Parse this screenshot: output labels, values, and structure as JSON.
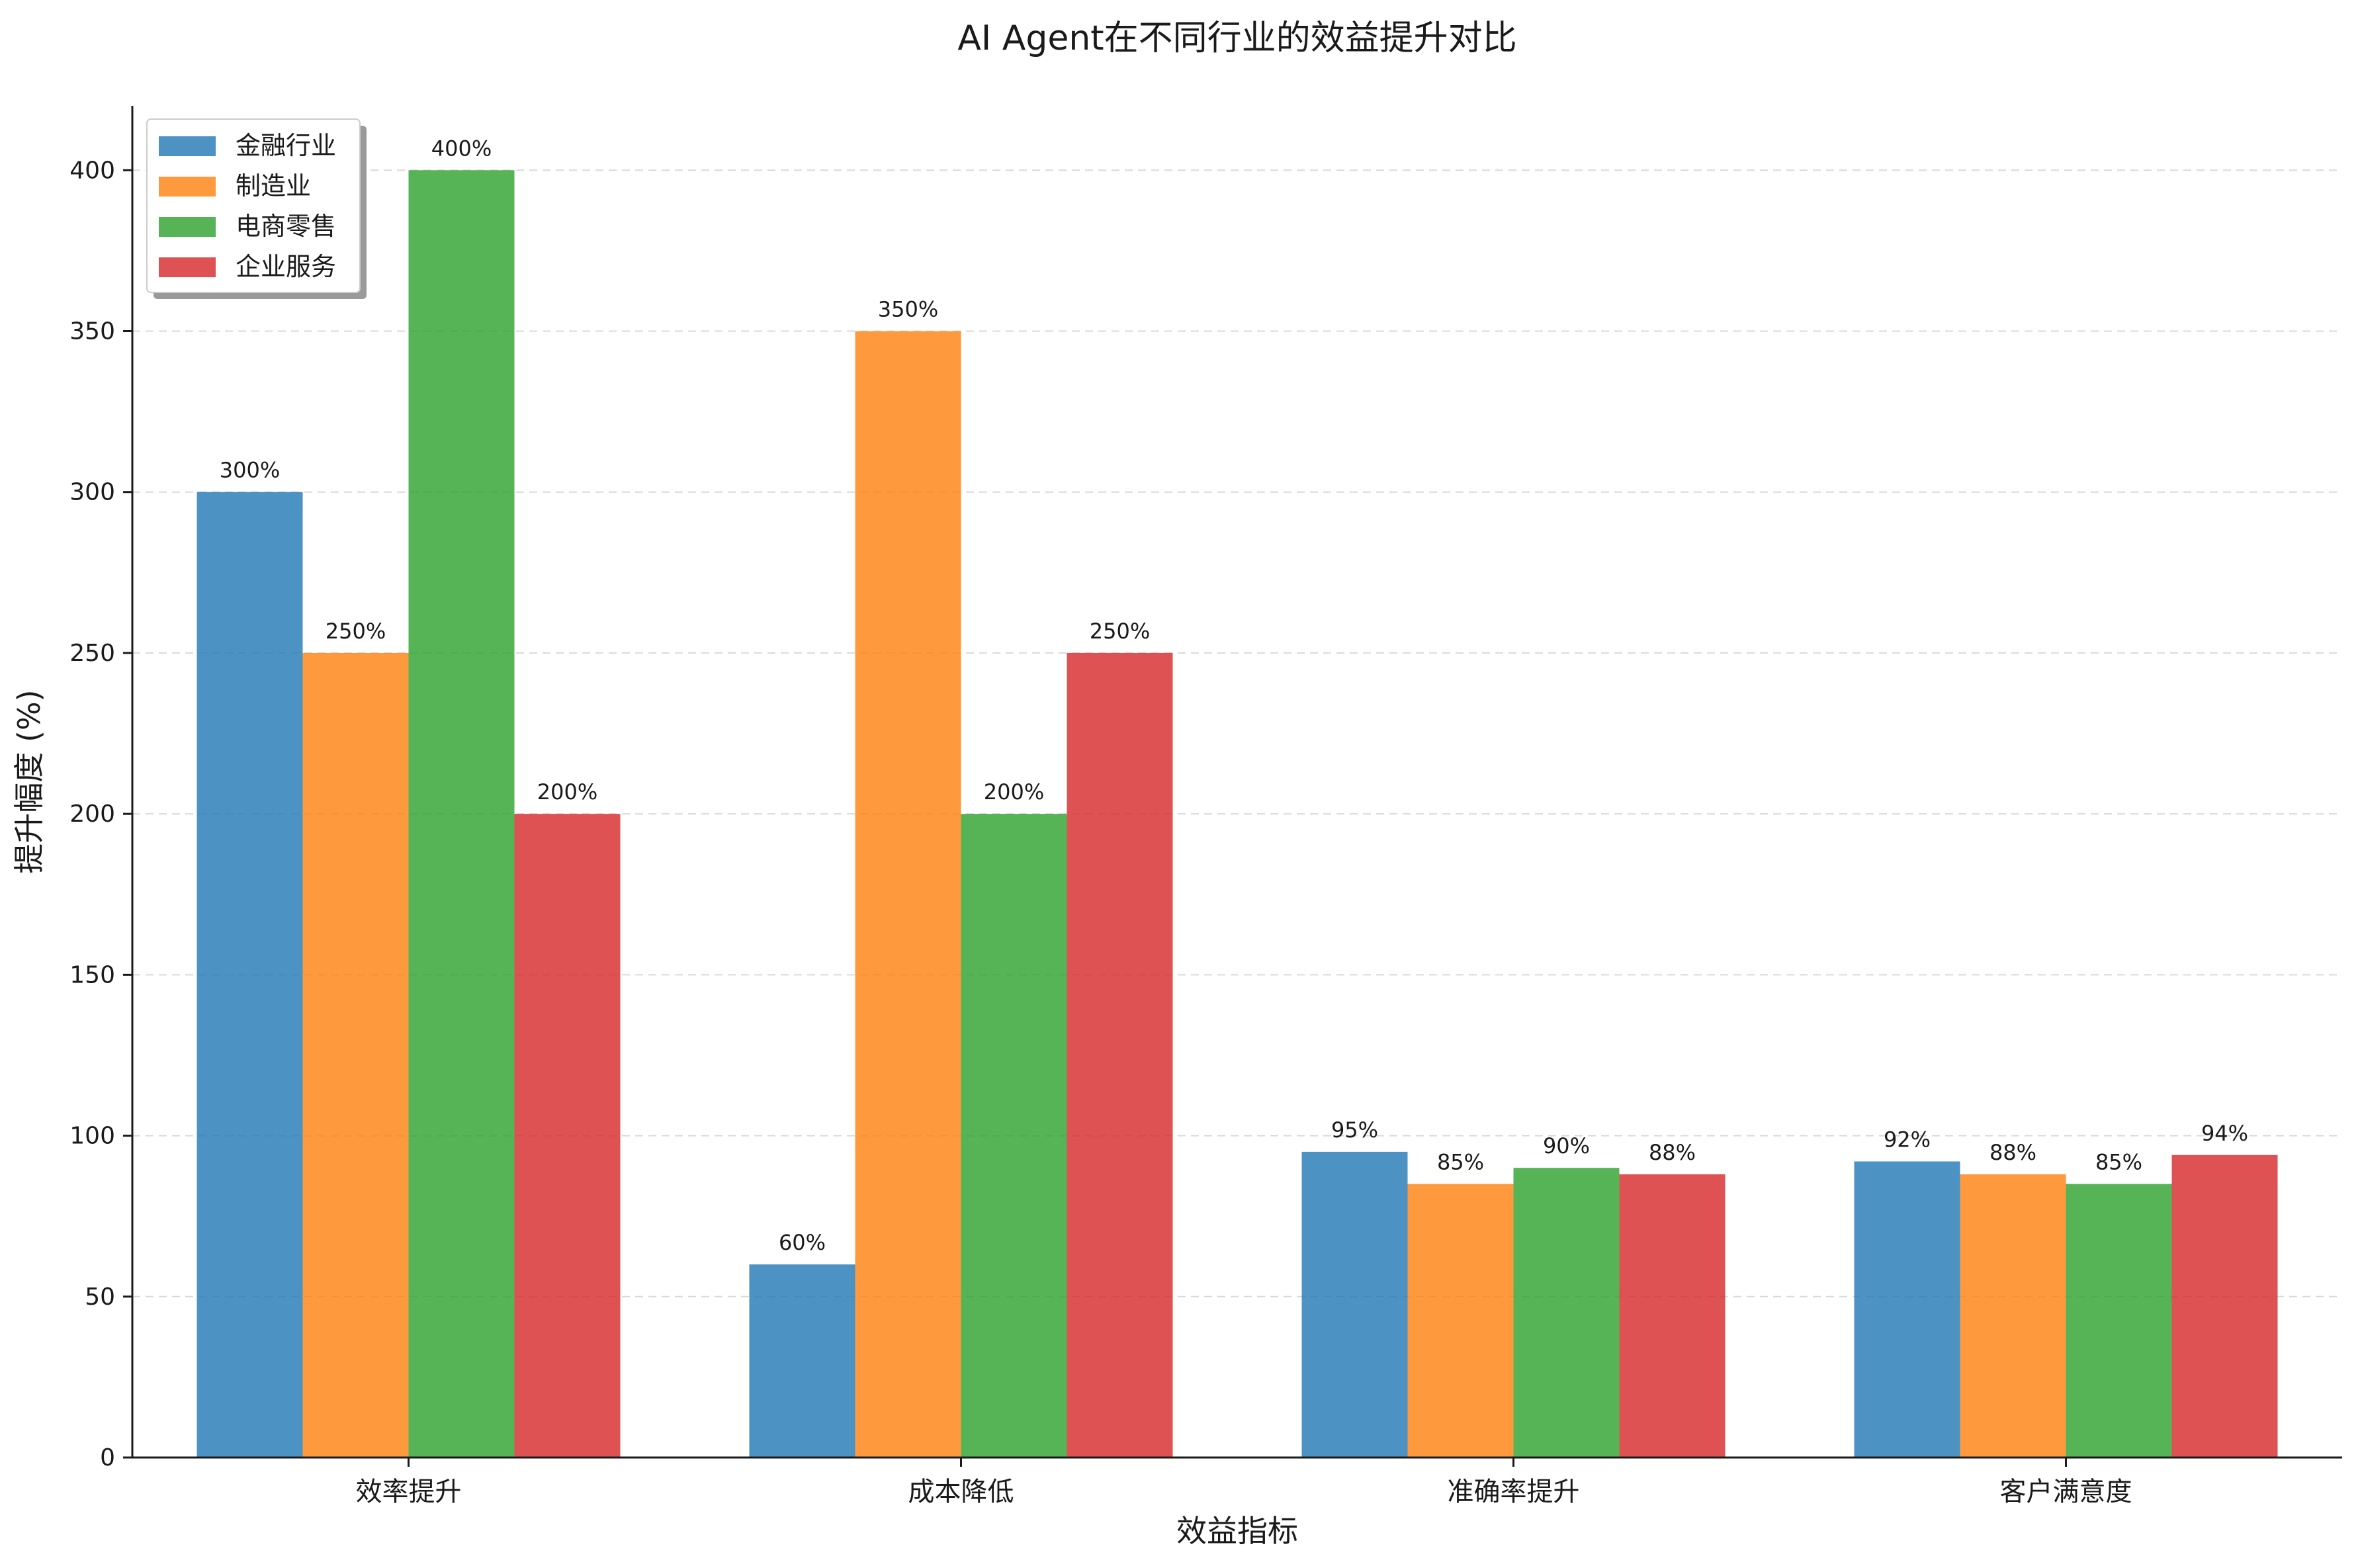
{
  "chart_data": {
    "type": "bar",
    "title": "AI Agent在不同行业的效益提升对比",
    "xlabel": "效益指标",
    "ylabel": "提升幅度 (%)",
    "categories": [
      "效率提升",
      "成本降低",
      "准确率提升",
      "客户满意度"
    ],
    "series": [
      {
        "name": "金融行业",
        "color": "#1f77b4",
        "values": [
          300,
          60,
          95,
          92
        ]
      },
      {
        "name": "制造业",
        "color": "#ff7f0e",
        "values": [
          250,
          350,
          85,
          88
        ]
      },
      {
        "name": "电商零售",
        "color": "#2ca02c",
        "values": [
          400,
          200,
          90,
          85
        ]
      },
      {
        "name": "企业服务",
        "color": "#d62728",
        "values": [
          200,
          250,
          88,
          94
        ]
      }
    ],
    "value_label_suffix": "%",
    "ylim": [
      0,
      420
    ],
    "yticks": [
      0,
      50,
      100,
      150,
      200,
      250,
      300,
      350,
      400
    ],
    "grid": "y-dashed",
    "legend_position": "top-left",
    "bar_opacity": 0.8
  }
}
